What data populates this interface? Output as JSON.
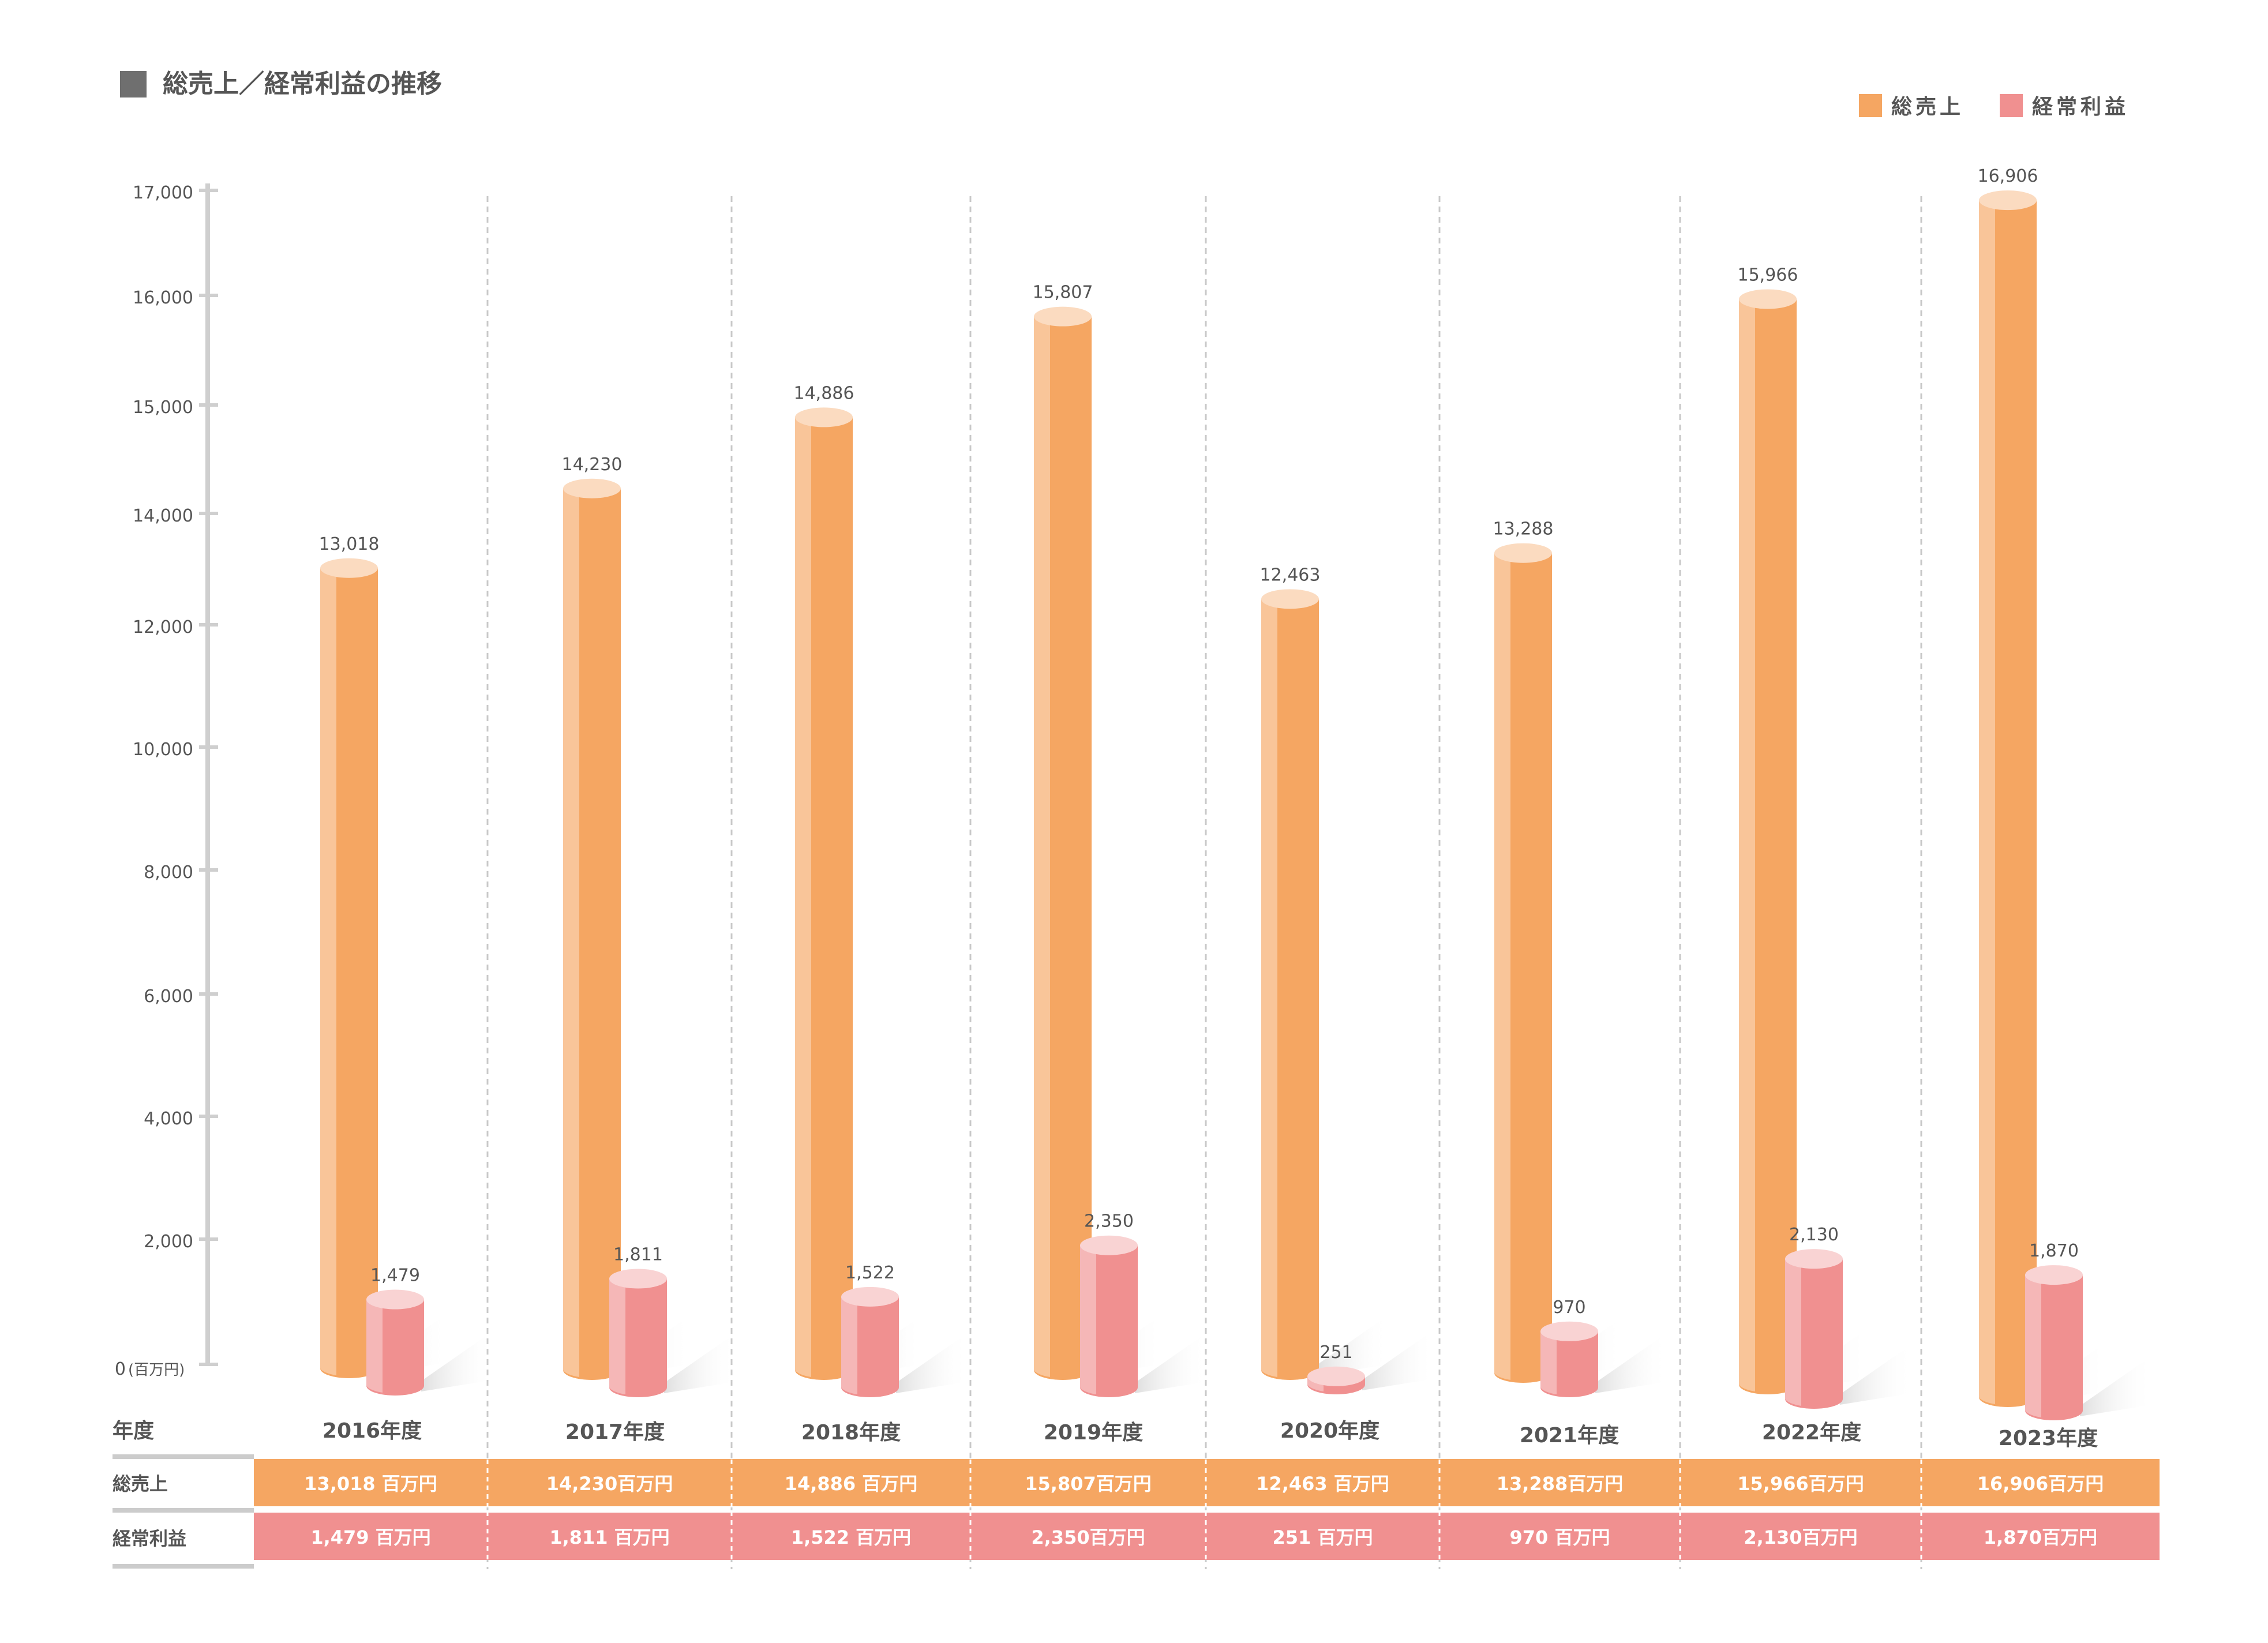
{
  "chart_data": {
    "type": "bar",
    "title": "総売上／経常利益の推移",
    "y_axis_unit": "(百万円)",
    "y_ticks": [
      "0",
      "2,000",
      "4,000",
      "6,000",
      "8,000",
      "10,000",
      "12,000",
      "14,000",
      "15,000",
      "16,000",
      "17,000"
    ],
    "legend": [
      "総売上",
      "経常利益"
    ],
    "legend_position": "top-right",
    "categories": [
      "2016年度",
      "2017年度",
      "2018年度",
      "2019年度",
      "2020年度",
      "2021年度",
      "2022年度",
      "2023年度"
    ],
    "series": [
      {
        "name": "総売上",
        "color": "#F5A662",
        "values": [
          13018,
          14230,
          14886,
          15807,
          12463,
          13288,
          15966,
          16906
        ],
        "labels": [
          "13,018",
          "14,230",
          "14,886",
          "15,807",
          "12,463",
          "13,288",
          "15,966",
          "16,906"
        ]
      },
      {
        "name": "経常利益",
        "color": "#F09090",
        "values": [
          1479,
          1811,
          1522,
          2350,
          251,
          970,
          2130,
          1870
        ],
        "labels": [
          "1,479",
          "1,811",
          "1,522",
          "2,350",
          "251",
          "970",
          "2,130",
          "1,870"
        ]
      }
    ],
    "table": {
      "header": "年度",
      "rows": [
        {
          "label": "総売上",
          "color": "#F5A662",
          "cells": [
            "13,018 百万円",
            "14,230百万円",
            "14,886 百万円",
            "15,807百万円",
            "12,463 百万円",
            "13,288百万円",
            "15,966百万円",
            "16,906百万円"
          ]
        },
        {
          "label": "経常利益",
          "color": "#F09090",
          "cells": [
            "1,479 百万円",
            "1,811 百万円",
            "1,522 百万円",
            "2,350百万円",
            "251 百万円",
            "970 百万円",
            "2,130百万円",
            "1,870百万円"
          ]
        }
      ]
    },
    "grid": false
  }
}
